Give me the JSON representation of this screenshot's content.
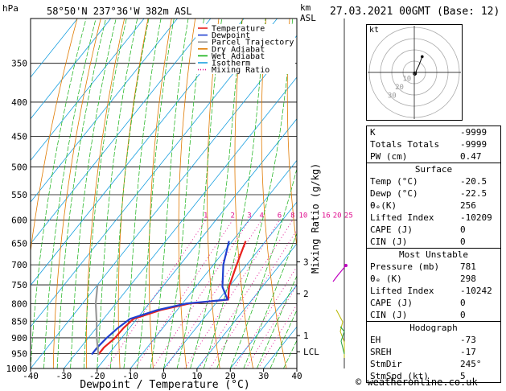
{
  "header": {
    "pressure_unit": "hPa",
    "location": "58°50'N  237°36'W  382m  ASL",
    "height_unit_km": "km",
    "height_unit_asl": "ASL",
    "datetime": "27.03.2021  00GMT  (Base: 12)"
  },
  "chart_data": {
    "type": "line",
    "xlabel": "Dewpoint / Temperature (°C)",
    "ylabel": "hPa",
    "xlim": [
      -40,
      40
    ],
    "ylim": [
      1000,
      300
    ],
    "y_scale": "log",
    "skew": true,
    "x_ticks": [
      "-40",
      "-30",
      "-20",
      "-10",
      "0",
      "10",
      "20",
      "30",
      "40"
    ],
    "y_ticks": [
      "350",
      "400",
      "450",
      "500",
      "550",
      "600",
      "650",
      "700",
      "750",
      "800",
      "850",
      "900",
      "950",
      "1000"
    ],
    "km_ticks": [
      {
        "label": "3",
        "p": 693
      },
      {
        "label": "2",
        "p": 773
      },
      {
        "label": "1",
        "p": 893
      },
      {
        "label": "LCL",
        "p": 944
      }
    ],
    "mixing_ratio_label": "Mixing Ratio (g/kg)",
    "mixing_ratio_values": [
      "1",
      "2",
      "3",
      "4",
      "6",
      "8",
      "10",
      "16",
      "20",
      "25"
    ],
    "legend": {
      "placement": "top",
      "items": [
        {
          "name": "Temperature",
          "color": "#e8201c",
          "style": "solid"
        },
        {
          "name": "Dewpoint",
          "color": "#2040d0",
          "style": "solid"
        },
        {
          "name": "Parcel Trajectory",
          "color": "#999999",
          "style": "solid"
        },
        {
          "name": "Dry Adiabat",
          "color": "#e07a00",
          "style": "solid"
        },
        {
          "name": "Wet Adiabat",
          "color": "#12b012",
          "style": "solid"
        },
        {
          "name": "Isotherm",
          "color": "#1aa0e0",
          "style": "solid"
        },
        {
          "name": "Mixing Ratio",
          "color": "#e01090",
          "style": "dotted"
        }
      ]
    },
    "series": [
      {
        "name": "Temperature",
        "color": "#e8201c",
        "points": [
          [
            953,
            -23
          ],
          [
            930,
            -23
          ],
          [
            902,
            -22
          ],
          [
            870,
            -21.8
          ],
          [
            843,
            -21
          ],
          [
            818,
            -15
          ],
          [
            800,
            -8
          ],
          [
            789,
            2.8
          ],
          [
            755,
            0
          ],
          [
            700,
            -3
          ],
          [
            645,
            -6
          ]
        ]
      },
      {
        "name": "Dewpoint",
        "color": "#2040d0",
        "points": [
          [
            953,
            -25
          ],
          [
            930,
            -25
          ],
          [
            902,
            -24.5
          ],
          [
            870,
            -23.5
          ],
          [
            843,
            -22
          ],
          [
            818,
            -16
          ],
          [
            800,
            -9
          ],
          [
            789,
            2.6
          ],
          [
            755,
            -2
          ],
          [
            700,
            -7
          ],
          [
            645,
            -11
          ]
        ]
      },
      {
        "name": "Parcel Trajectory",
        "color": "#999999",
        "points": [
          [
            953,
            -23
          ],
          [
            900,
            -27.5
          ],
          [
            850,
            -31.5
          ],
          [
            800,
            -36
          ],
          [
            750,
            -40
          ]
        ]
      }
    ]
  },
  "hodograph": {
    "label": "kt",
    "ring_labels": [
      "10",
      "20",
      "30"
    ],
    "vectors_kt": [
      [
        0,
        0
      ],
      [
        1,
        -2
      ],
      [
        2,
        2
      ],
      [
        4,
        6
      ],
      [
        7,
        14
      ]
    ]
  },
  "indices": {
    "rows": [
      {
        "label": "K",
        "value": "-9999"
      },
      {
        "label": "Totals Totals",
        "value": "-9999"
      },
      {
        "label": "PW (cm)",
        "value": "0.47"
      }
    ]
  },
  "surface": {
    "title": "Surface",
    "rows": [
      {
        "label": "Temp (°C)",
        "value": "-20.5"
      },
      {
        "label": "Dewp (°C)",
        "value": "-22.5"
      },
      {
        "label": "θₑ(K)",
        "value": "256"
      },
      {
        "label": "Lifted Index",
        "value": "-10209"
      },
      {
        "label": "CAPE (J)",
        "value": "0"
      },
      {
        "label": "CIN (J)",
        "value": "0"
      }
    ]
  },
  "most_unstable": {
    "title": "Most Unstable",
    "rows": [
      {
        "label": "Pressure (mb)",
        "value": "781"
      },
      {
        "label": "θₑ (K)",
        "value": "298"
      },
      {
        "label": "Lifted Index",
        "value": "-10242"
      },
      {
        "label": "CAPE (J)",
        "value": "0"
      },
      {
        "label": "CIN (J)",
        "value": "0"
      }
    ]
  },
  "hodograph_stats": {
    "title": "Hodograph",
    "rows": [
      {
        "label": "EH",
        "value": "-73"
      },
      {
        "label": "SREH",
        "value": "-17"
      },
      {
        "label": "StmDir",
        "value": "245°"
      },
      {
        "label": "StmSpd (kt)",
        "value": "5"
      }
    ]
  },
  "copyright": "© weatheronline.co.uk"
}
